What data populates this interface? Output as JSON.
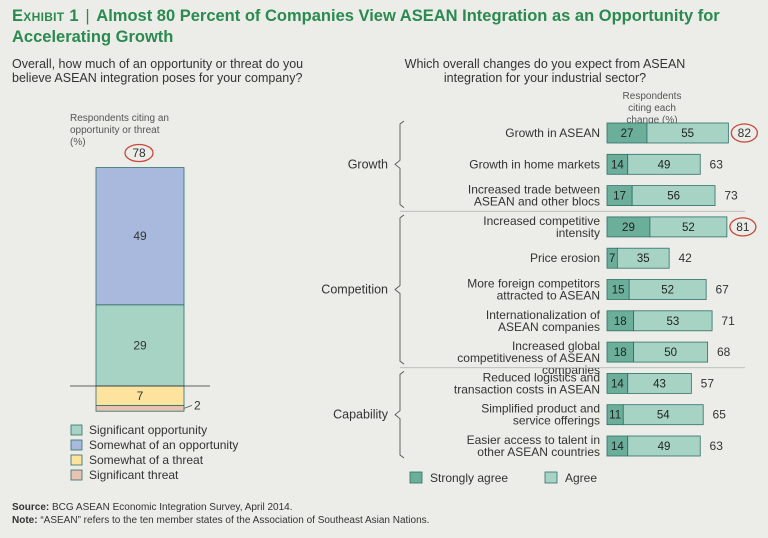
{
  "header": {
    "exhibit": "Exhibit 1",
    "title": "Almost 80 Percent of Companies View ASEAN Integration as an Opportunity for Accelerating Growth"
  },
  "left_question": "Overall, how much of an opportunity or threat do you believe ASEAN integration poses for your company?",
  "right_question": "Which overall changes do you expect from ASEAN integration for your industrial sector?",
  "colors": {
    "significant_opportunity": "#a7d3c5",
    "somewhat_opportunity": "#a9b9de",
    "somewhat_threat": "#fde39d",
    "significant_threat": "#e8c3b2",
    "strongly_agree": "#6bae99",
    "agree": "#a7d3c5",
    "border": "#2f6e6a",
    "highlight_circle": "#c9483a",
    "title_green": "#2a8a4f"
  },
  "chart_data": [
    {
      "type": "bar",
      "orientation": "stacked-vertical",
      "axis_label": "Respondents citing an opportunity or threat (%)",
      "total_opportunity": 78,
      "segments": [
        {
          "name": "Significant opportunity",
          "value": 29
        },
        {
          "name": "Somewhat of an opportunity",
          "value": 49
        },
        {
          "name": "Somewhat of a threat",
          "value": 7
        },
        {
          "name": "Significant threat",
          "value": 2
        }
      ],
      "legend": [
        "Significant opportunity",
        "Somewhat of an opportunity",
        "Somewhat of a threat",
        "Significant threat"
      ]
    },
    {
      "type": "bar",
      "orientation": "stacked-horizontal",
      "axis_label": "Respondents citing each change (%)",
      "legend": [
        "Strongly agree",
        "Agree"
      ],
      "groups": [
        {
          "name": "Growth",
          "items": [
            {
              "label": "Growth in ASEAN",
              "strongly_agree": 27,
              "agree": 55,
              "total": 82,
              "highlight": true
            },
            {
              "label": "Growth in home markets",
              "strongly_agree": 14,
              "agree": 49,
              "total": 63,
              "highlight": false
            },
            {
              "label": "Increased trade between ASEAN and other blocs",
              "strongly_agree": 17,
              "agree": 56,
              "total": 73,
              "highlight": false
            }
          ]
        },
        {
          "name": "Competition",
          "items": [
            {
              "label": "Increased competitive intensity",
              "strongly_agree": 29,
              "agree": 52,
              "total": 81,
              "highlight": true
            },
            {
              "label": "Price erosion",
              "strongly_agree": 7,
              "agree": 35,
              "total": 42,
              "highlight": false
            },
            {
              "label": "More foreign competitors attracted to ASEAN",
              "strongly_agree": 15,
              "agree": 52,
              "total": 67,
              "highlight": false
            },
            {
              "label": "Internationalization of ASEAN companies",
              "strongly_agree": 18,
              "agree": 53,
              "total": 71,
              "highlight": false
            },
            {
              "label": "Increased global competitiveness of ASEAN companies",
              "strongly_agree": 18,
              "agree": 50,
              "total": 68,
              "highlight": false
            }
          ]
        },
        {
          "name": "Capability",
          "items": [
            {
              "label": "Reduced logistics and transaction costs in ASEAN",
              "strongly_agree": 14,
              "agree": 43,
              "total": 57,
              "highlight": false
            },
            {
              "label": "Simplified product and service offerings",
              "strongly_agree": 11,
              "agree": 54,
              "total": 65,
              "highlight": false
            },
            {
              "label": "Easier access to talent in other ASEAN countries",
              "strongly_agree": 14,
              "agree": 49,
              "total": 63,
              "highlight": false
            }
          ]
        }
      ]
    }
  ],
  "footer": {
    "source_label": "Source:",
    "source": "BCG ASEAN Economic Integration Survey, April 2014.",
    "note_label": "Note:",
    "note": "“ASEAN” refers to the ten member states of the Association of Southeast Asian Nations."
  }
}
